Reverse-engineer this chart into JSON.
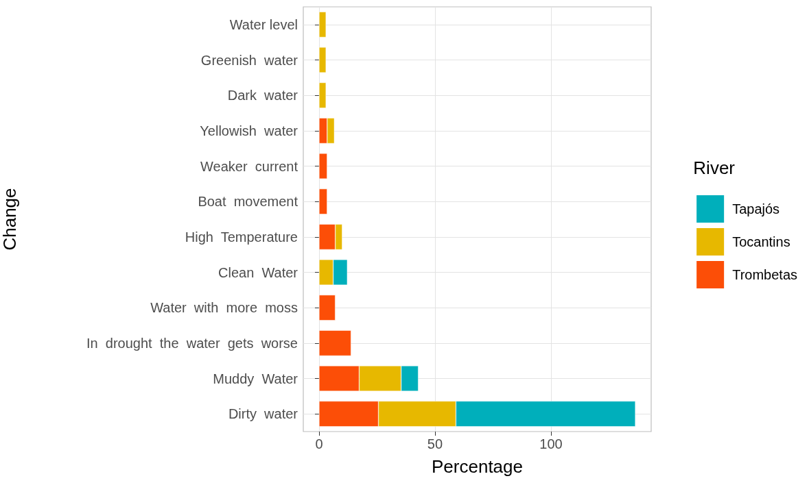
{
  "chart_data": {
    "type": "bar",
    "orientation": "horizontal",
    "stacked": true,
    "xlabel": "Percentage",
    "ylabel": "Change",
    "legend_title": "River",
    "categories": [
      "Water level",
      "Greenish  water",
      "Dark  water",
      "Yellowish  water",
      "Weaker  current",
      "Boat  movement",
      "High  Temperature",
      "Clean  Water",
      "Water  with  more  moss",
      "In  drought  the  water  gets  worse",
      "Muddy  Water",
      "Dirty  water"
    ],
    "series": [
      {
        "name": "Trombetas",
        "color": "#fc4e07",
        "values": [
          null,
          null,
          null,
          3.5,
          3.5,
          3.5,
          7.0,
          null,
          7.0,
          13.8,
          17.3,
          25.6
        ]
      },
      {
        "name": "Tocantins",
        "color": "#e7b800",
        "values": [
          3.0,
          3.0,
          3.0,
          3.1,
          null,
          null,
          3.0,
          6.1,
          null,
          null,
          18.1,
          33.4
        ]
      },
      {
        "name": "Tapajós",
        "color": "#00afbb",
        "values": [
          null,
          null,
          null,
          null,
          null,
          null,
          null,
          6.1,
          null,
          null,
          7.4,
          77.4
        ]
      }
    ],
    "xlim": [
      -6.8,
      143.2
    ],
    "xticks": [
      0,
      50,
      100
    ],
    "grid": true,
    "legend": "right"
  }
}
